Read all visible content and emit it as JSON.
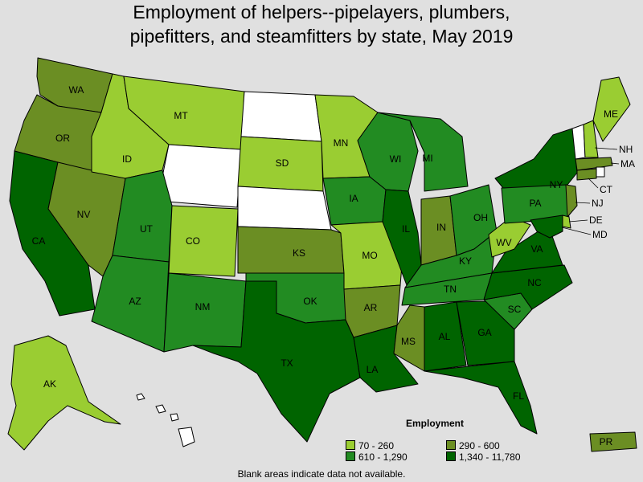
{
  "title": {
    "line1": "Employment of helpers--pipelayers, plumbers,",
    "line2": "pipefitters, and steamfitters by state, May 2019"
  },
  "legend": {
    "title": "Employment",
    "items": [
      {
        "label": "70 - 260",
        "color": "#9acd32"
      },
      {
        "label": "290 - 600",
        "color": "#6b8e23"
      },
      {
        "label": "610 - 1,290",
        "color": "#228b22"
      },
      {
        "label": "1,340 - 11,780",
        "color": "#006400"
      }
    ]
  },
  "no_data_color": "#ffffff",
  "footnote": "Blank areas indicate data not available.",
  "states": [
    {
      "abbr": "WA",
      "range": "290 - 600"
    },
    {
      "abbr": "OR",
      "range": "290 - 600"
    },
    {
      "abbr": "CA",
      "range": "1,340 - 11,780"
    },
    {
      "abbr": "NV",
      "range": "290 - 600"
    },
    {
      "abbr": "ID",
      "range": "70 - 260"
    },
    {
      "abbr": "MT",
      "range": "70 - 260"
    },
    {
      "abbr": "WY",
      "range": null
    },
    {
      "abbr": "UT",
      "range": "610 - 1,290"
    },
    {
      "abbr": "AZ",
      "range": "610 - 1,290"
    },
    {
      "abbr": "CO",
      "range": "70 - 260"
    },
    {
      "abbr": "NM",
      "range": "610 - 1,290"
    },
    {
      "abbr": "ND",
      "range": null
    },
    {
      "abbr": "SD",
      "range": "70 - 260"
    },
    {
      "abbr": "NE",
      "range": null
    },
    {
      "abbr": "KS",
      "range": "290 - 600"
    },
    {
      "abbr": "OK",
      "range": "610 - 1,290"
    },
    {
      "abbr": "TX",
      "range": "1,340 - 11,780"
    },
    {
      "abbr": "MN",
      "range": "70 - 260"
    },
    {
      "abbr": "IA",
      "range": "610 - 1,290"
    },
    {
      "abbr": "MO",
      "range": "70 - 260"
    },
    {
      "abbr": "AR",
      "range": "290 - 600"
    },
    {
      "abbr": "LA",
      "range": "1,340 - 11,780"
    },
    {
      "abbr": "WI",
      "range": "610 - 1,290"
    },
    {
      "abbr": "IL",
      "range": "1,340 - 11,780"
    },
    {
      "abbr": "MI",
      "range": "610 - 1,290"
    },
    {
      "abbr": "IN",
      "range": "290 - 600"
    },
    {
      "abbr": "OH",
      "range": "610 - 1,290"
    },
    {
      "abbr": "KY",
      "range": "610 - 1,290"
    },
    {
      "abbr": "TN",
      "range": "610 - 1,290"
    },
    {
      "abbr": "MS",
      "range": "290 - 600"
    },
    {
      "abbr": "AL",
      "range": "1,340 - 11,780"
    },
    {
      "abbr": "GA",
      "range": "1,340 - 11,780"
    },
    {
      "abbr": "FL",
      "range": "1,340 - 11,780"
    },
    {
      "abbr": "SC",
      "range": "610 - 1,290"
    },
    {
      "abbr": "NC",
      "range": "1,340 - 11,780"
    },
    {
      "abbr": "VA",
      "range": "1,340 - 11,780"
    },
    {
      "abbr": "WV",
      "range": "70 - 260"
    },
    {
      "abbr": "PA",
      "range": "610 - 1,290"
    },
    {
      "abbr": "NY",
      "range": "1,340 - 11,780"
    },
    {
      "abbr": "VT",
      "range": null
    },
    {
      "abbr": "NH",
      "range": "70 - 260"
    },
    {
      "abbr": "ME",
      "range": "70 - 260"
    },
    {
      "abbr": "MA",
      "range": "290 - 600"
    },
    {
      "abbr": "CT",
      "range": "290 - 600"
    },
    {
      "abbr": "RI",
      "range": null
    },
    {
      "abbr": "NJ",
      "range": "290 - 600"
    },
    {
      "abbr": "DE",
      "range": "70 - 260"
    },
    {
      "abbr": "MD",
      "range": "1,340 - 11,780"
    },
    {
      "abbr": "AK",
      "range": "70 - 260"
    },
    {
      "abbr": "HI",
      "range": null
    },
    {
      "abbr": "PR",
      "range": "290 - 600"
    }
  ]
}
